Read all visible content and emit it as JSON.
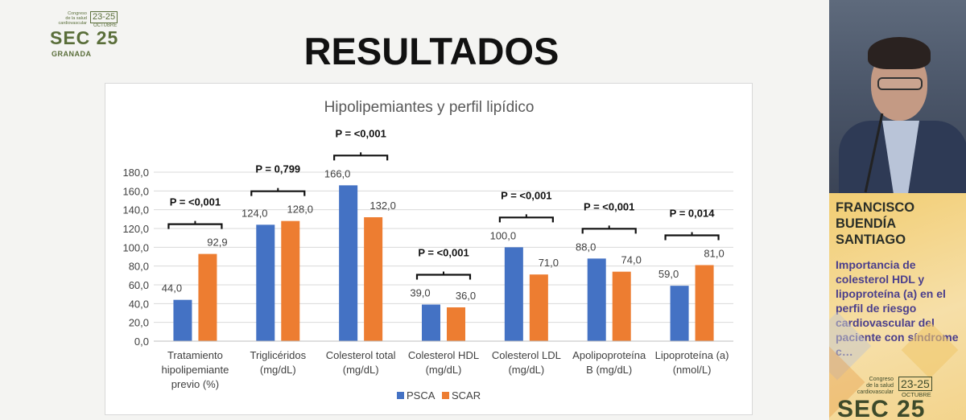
{
  "conference_logo": {
    "small_lines": [
      "Congreso",
      "de la salud",
      "cardiovascular"
    ],
    "dates": "23-25",
    "month": "OCTUBRE",
    "name": "SEC 25",
    "city": "GRANADA"
  },
  "slide_title": "RESULTADOS",
  "colors": {
    "psca": "#4472c4",
    "scar": "#ed7d31",
    "bracket": "#111111",
    "grid": "#d9d9d9"
  },
  "chart_data": {
    "type": "bar",
    "title": "Hipolipemiantes y perfil lipídico",
    "categories": [
      [
        "Tratamiento",
        "hipolipemiante",
        "previo (%)"
      ],
      [
        "Triglicéridos",
        "(mg/dL)"
      ],
      [
        "Colesterol total",
        "(mg/dL)"
      ],
      [
        "Colesterol HDL",
        "(mg/dL)"
      ],
      [
        "Colesterol LDL",
        "(mg/dL)"
      ],
      [
        "Apolipoproteína",
        "B (mg/dL)"
      ],
      [
        "Lipoproteína (a)",
        "(nmol/L)"
      ]
    ],
    "series": [
      {
        "name": "PSCA",
        "values": [
          44.0,
          124.0,
          166.0,
          39.0,
          100.0,
          88.0,
          59.0
        ],
        "labels": [
          "44,0",
          "124,0",
          "166,0",
          "39,0",
          "100,0",
          "88,0",
          "59,0"
        ]
      },
      {
        "name": "SCAR",
        "values": [
          92.9,
          128.0,
          132.0,
          36.0,
          71.0,
          74.0,
          81.0
        ],
        "labels": [
          "92,9",
          "128,0",
          "132,0",
          "36,0",
          "71,0",
          "74,0",
          "81,0"
        ]
      }
    ],
    "p_values": [
      "P = <0,001",
      "P = 0,799",
      "P = <0,001",
      "P = <0,001",
      "P = <0,001",
      "P = <0,001",
      "P = 0,014"
    ],
    "ylim": [
      0,
      180
    ],
    "yticks": [
      "0,0",
      "20,0",
      "40,0",
      "60,0",
      "80,0",
      "100,0",
      "120,0",
      "140,0",
      "160,0",
      "180,0"
    ],
    "grid": true,
    "legend": "bottom"
  },
  "speaker": {
    "name_lines": [
      "FRANCISCO",
      "BUENDÍA",
      "SANTIAGO"
    ],
    "talk_title": "Importancia de colesterol HDL y lipoproteína (a) en el perfil de riesgo cardiovascular del paciente con síndrome c…"
  }
}
